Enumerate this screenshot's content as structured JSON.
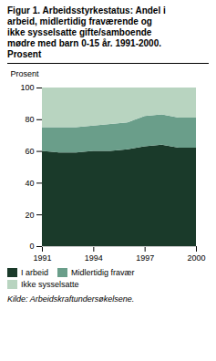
{
  "chart_data": {
    "type": "area",
    "stacked": true,
    "title": "Figur 1. Arbeidsstyrkestatus: Andel i\narbeid, midlertidig fraværende og\nikke sysselsatte gifte/samboende\nmødre med barn 0-15 år. 1991-2000.\nProsent",
    "ylabel": "Prosent",
    "annotations": [
      "Kilde: Arbeidskraftundersøkelsene."
    ],
    "x": [
      1991,
      1992,
      1993,
      1994,
      1995,
      1996,
      1997,
      1998,
      1999,
      2000
    ],
    "series": [
      {
        "name": "I arbeid",
        "color": "#1a3a2a",
        "values": [
          60,
          59,
          59,
          60,
          60,
          61,
          63,
          64,
          62,
          62
        ]
      },
      {
        "name": "Midlertidig fravær",
        "color": "#6a9e8a",
        "values": [
          15,
          16,
          16,
          16,
          17,
          17,
          19,
          19,
          19,
          19
        ]
      },
      {
        "name": "Ikke sysselsatte",
        "color": "#b8d4c0",
        "values": [
          25,
          25,
          25,
          24,
          23,
          22,
          18,
          17,
          19,
          19
        ]
      }
    ],
    "xlim": [
      1991,
      2000
    ],
    "xticks": [
      1991,
      1994,
      1997,
      2000
    ],
    "ylim": [
      0,
      100
    ],
    "yticks": [
      0,
      20,
      40,
      60,
      80,
      100
    ],
    "grid": true,
    "legend": "bottom"
  }
}
